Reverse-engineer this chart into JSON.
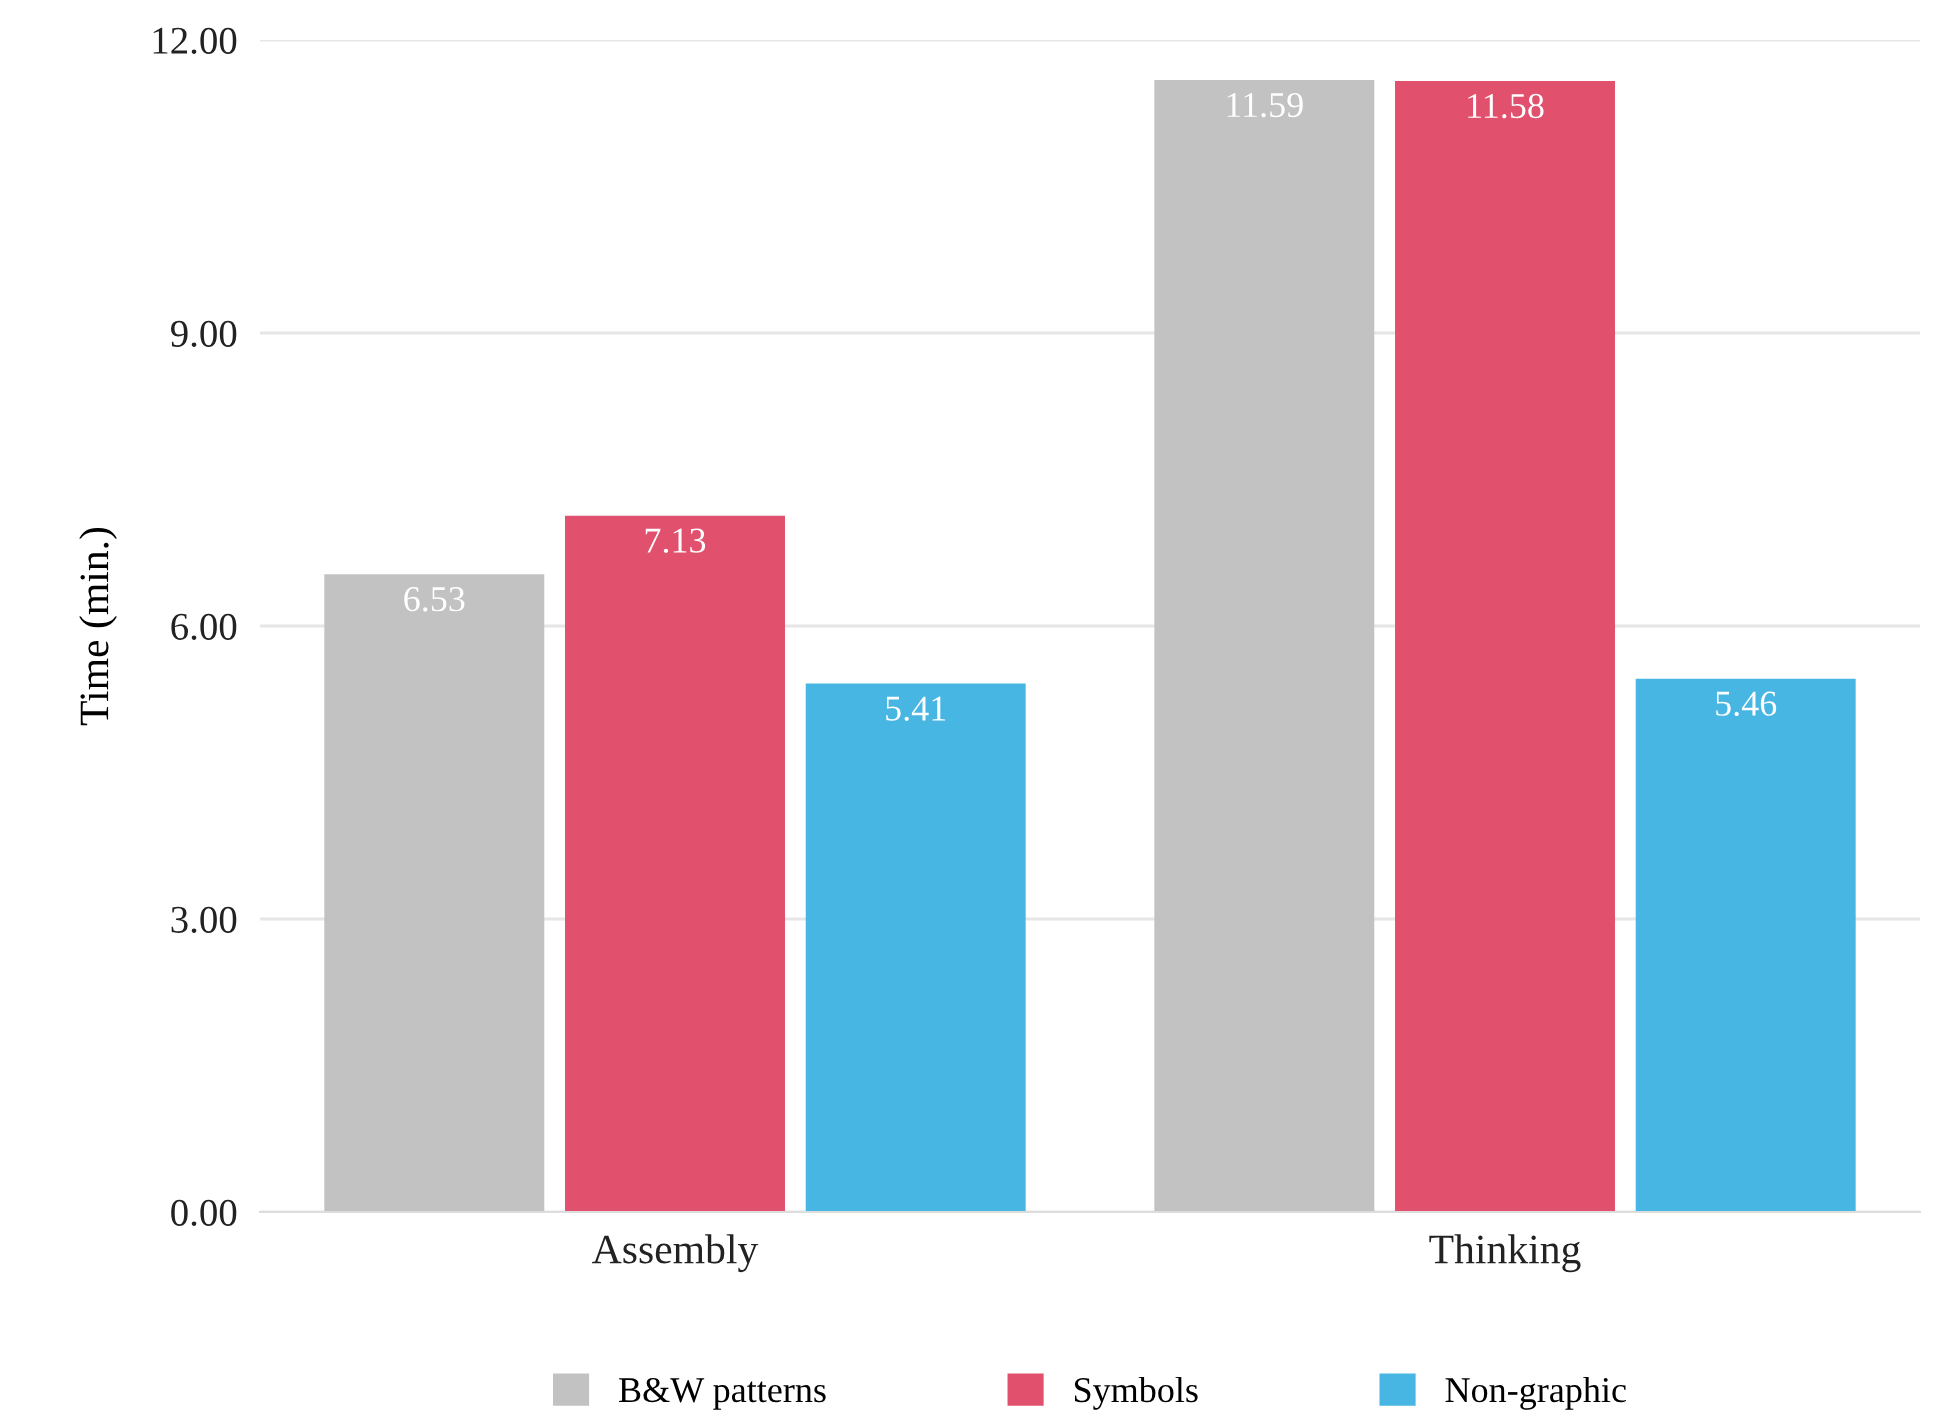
{
  "chart_data": {
    "type": "bar",
    "ylabel": "Time (min.)",
    "categories": [
      "Assembly",
      "Thinking"
    ],
    "series": [
      {
        "name": "B&W patterns",
        "color": "#c2c2c2",
        "values": [
          6.53,
          11.59
        ]
      },
      {
        "name": "Symbols",
        "color": "#e1506c",
        "values": [
          7.13,
          11.58
        ]
      },
      {
        "name": "Non-graphic",
        "color": "#47b6e2",
        "values": [
          5.41,
          5.46
        ]
      }
    ],
    "ylim": [
      0,
      12
    ],
    "yticks": [
      {
        "value": 0,
        "label": "0.00"
      },
      {
        "value": 3,
        "label": "3.00"
      },
      {
        "value": 6,
        "label": "6.00"
      },
      {
        "value": 9,
        "label": "9.00"
      },
      {
        "value": 12,
        "label": "12.00"
      }
    ],
    "grid": "y",
    "legend": "bottom",
    "data_labels": true
  }
}
